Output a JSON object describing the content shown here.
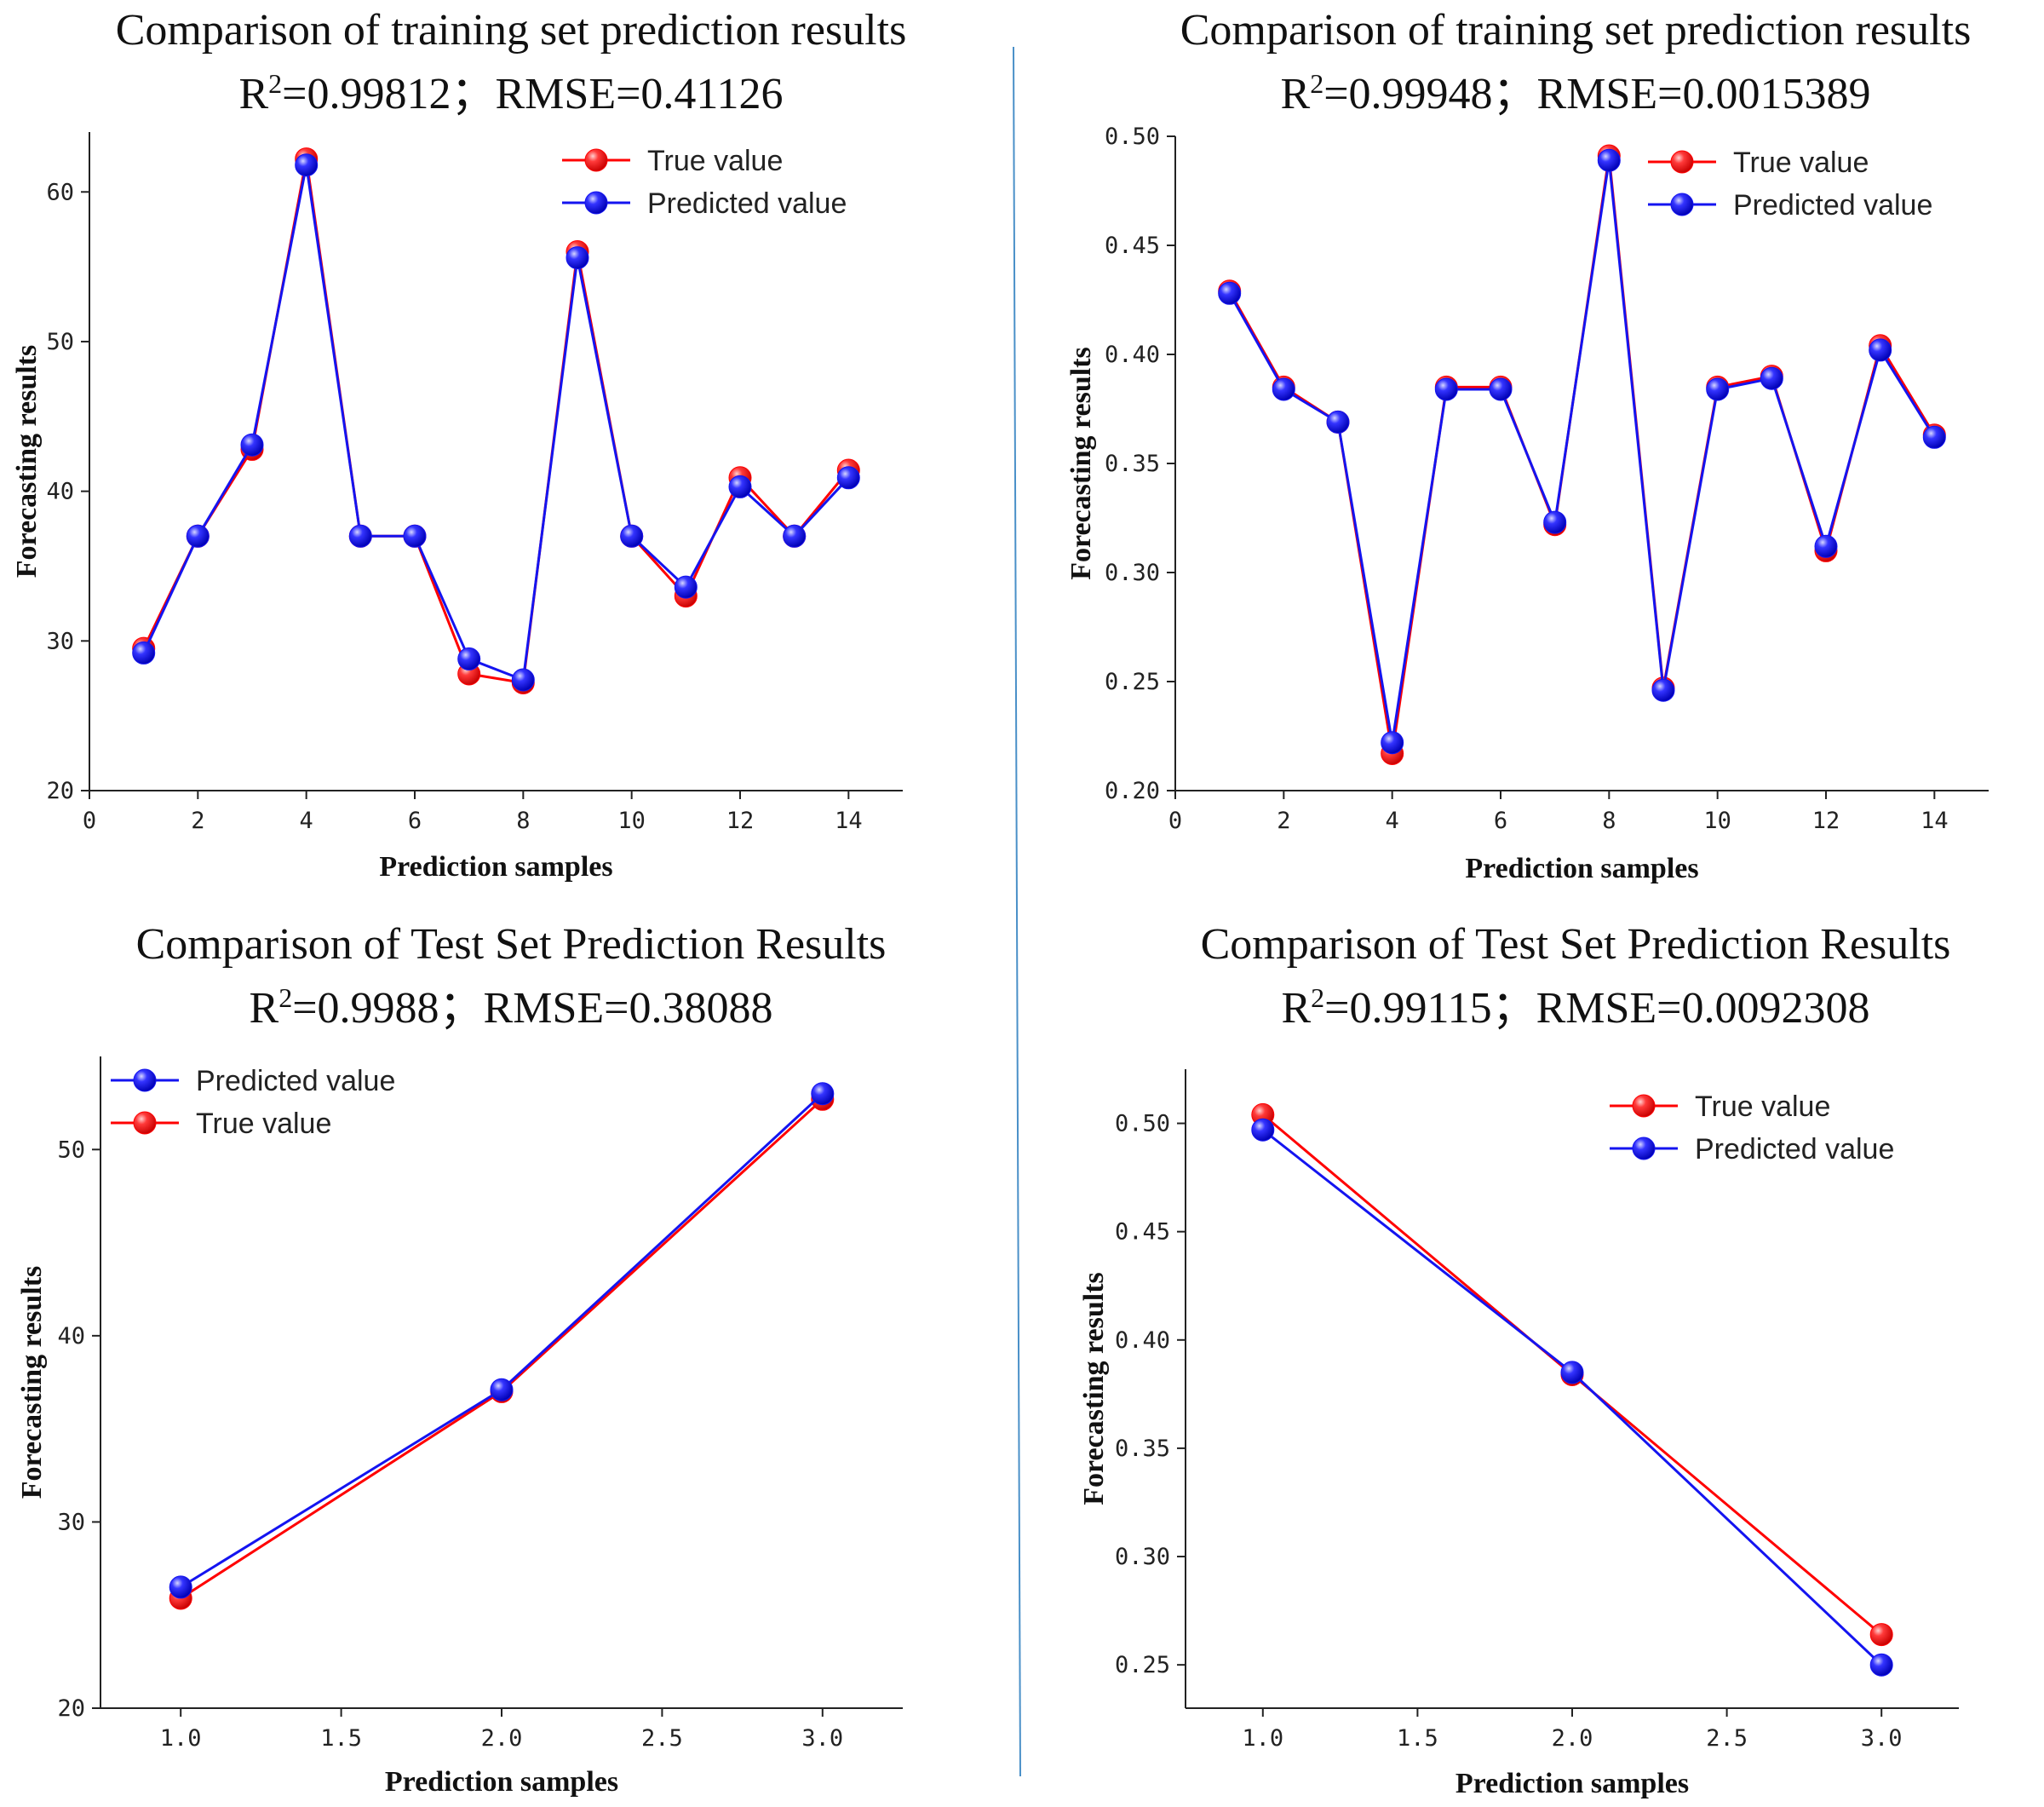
{
  "colors": {
    "true_value": "#ff0000",
    "predicted_value": "#1414f0",
    "divider": "#4a90c8"
  },
  "chart_data": [
    {
      "id": "train-1",
      "type": "line",
      "title_line1": "Comparison of training set prediction results",
      "r2_value": "0.99812",
      "rmse_text": "；RMSE=0.41126",
      "xlabel": "Prediction samples",
      "ylabel": "Forecasting results",
      "xlim": [
        0,
        15
      ],
      "ylim": [
        20,
        64
      ],
      "xticks": [
        0,
        2,
        4,
        6,
        8,
        10,
        12,
        14
      ],
      "yticks": [
        20,
        30,
        40,
        50,
        60
      ],
      "tick_decimals": 0,
      "legend_position": "top-right",
      "legend_order": [
        "True value",
        "Predicted value"
      ],
      "x": [
        1,
        2,
        3,
        4,
        5,
        6,
        7,
        8,
        9,
        10,
        11,
        12,
        13,
        14
      ],
      "series": [
        {
          "name": "True value",
          "values": [
            29.5,
            37.0,
            42.8,
            62.2,
            37.0,
            37.0,
            27.8,
            27.2,
            56.0,
            37.0,
            33.0,
            40.9,
            37.0,
            41.4
          ]
        },
        {
          "name": "Predicted value",
          "values": [
            29.2,
            37.0,
            43.1,
            61.8,
            37.0,
            37.0,
            28.8,
            27.4,
            55.6,
            37.0,
            33.6,
            40.3,
            37.0,
            40.9
          ]
        }
      ]
    },
    {
      "id": "train-2",
      "type": "line",
      "title_line1": "Comparison of training set prediction results",
      "r2_value": "0.99948",
      "rmse_text": "；RMSE=0.0015389",
      "xlabel": "Prediction samples",
      "ylabel": "Forecasting results",
      "xlim": [
        0,
        15
      ],
      "ylim": [
        0.2,
        0.5
      ],
      "xticks": [
        0,
        2,
        4,
        6,
        8,
        10,
        12,
        14
      ],
      "yticks": [
        0.2,
        0.25,
        0.3,
        0.35,
        0.4,
        0.45,
        0.5
      ],
      "tick_decimals": 2,
      "legend_position": "top-right",
      "legend_order": [
        "True value",
        "Predicted value"
      ],
      "x": [
        1,
        2,
        3,
        4,
        5,
        6,
        7,
        8,
        9,
        10,
        11,
        12,
        13,
        14
      ],
      "series": [
        {
          "name": "True value",
          "values": [
            0.429,
            0.385,
            0.369,
            0.217,
            0.385,
            0.385,
            0.322,
            0.491,
            0.247,
            0.385,
            0.39,
            0.31,
            0.404,
            0.363
          ]
        },
        {
          "name": "Predicted value",
          "values": [
            0.428,
            0.384,
            0.369,
            0.222,
            0.384,
            0.384,
            0.323,
            0.489,
            0.246,
            0.384,
            0.389,
            0.312,
            0.402,
            0.362
          ]
        }
      ]
    },
    {
      "id": "test-1",
      "type": "line",
      "title_line1": "Comparison of Test Set Prediction Results",
      "r2_value": "0.9988",
      "rmse_text": "；RMSE=0.38088",
      "xlabel": "Prediction samples",
      "ylabel": "Forecasting results",
      "xlim": [
        0.75,
        3.25
      ],
      "ylim": [
        20,
        55
      ],
      "xticks": [
        1.0,
        1.5,
        2.0,
        2.5,
        3.0
      ],
      "yticks": [
        20,
        30,
        40,
        50
      ],
      "tick_decimals": 0,
      "xtick_decimals": 1,
      "legend_position": "top-left",
      "legend_order": [
        "Predicted value",
        "True value"
      ],
      "x": [
        1,
        2,
        3
      ],
      "series": [
        {
          "name": "True value",
          "values": [
            25.9,
            37.0,
            52.7
          ]
        },
        {
          "name": "Predicted value",
          "values": [
            26.5,
            37.1,
            53.0
          ]
        }
      ]
    },
    {
      "id": "test-2",
      "type": "line",
      "title_line1": "Comparison of Test Set Prediction Results",
      "r2_value": "0.99115",
      "rmse_text": "；RMSE=0.0092308",
      "xlabel": "Prediction samples",
      "ylabel": "Forecasting results",
      "xlim": [
        0.75,
        3.25
      ],
      "ylim": [
        0.23,
        0.525
      ],
      "xticks": [
        1.0,
        1.5,
        2.0,
        2.5,
        3.0
      ],
      "yticks": [
        0.25,
        0.3,
        0.35,
        0.4,
        0.45,
        0.5
      ],
      "tick_decimals": 2,
      "xtick_decimals": 1,
      "legend_position": "top-right",
      "legend_order": [
        "True value",
        "Predicted value"
      ],
      "x": [
        1,
        2,
        3
      ],
      "series": [
        {
          "name": "True value",
          "values": [
            0.504,
            0.384,
            0.264
          ]
        },
        {
          "name": "Predicted value",
          "values": [
            0.497,
            0.385,
            0.25
          ]
        }
      ]
    }
  ]
}
